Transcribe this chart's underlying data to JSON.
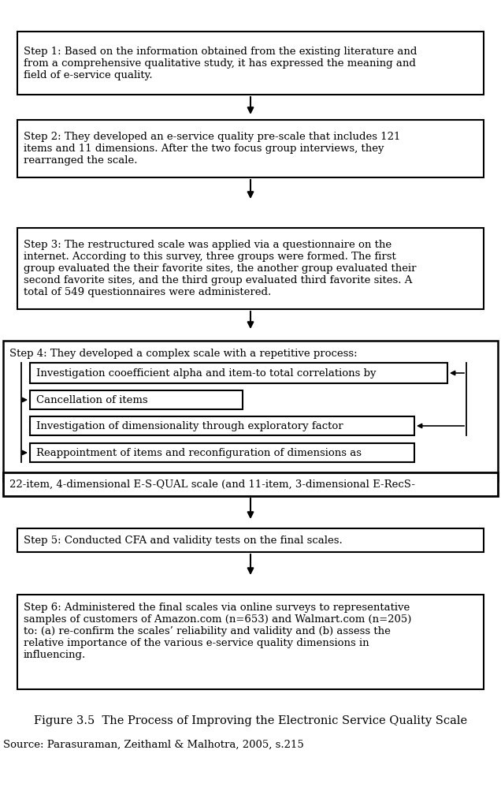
{
  "title": "Figure 3.5  The Process of Improving the Electronic Service Quality Scale",
  "source": "Source: Parasuraman, Zeithaml & Malhotra, 2005, s.215",
  "bg_color": "#ffffff",
  "text_color": "#000000",
  "box_edge_color": "#000000",
  "step1_text": "Step 1: Based on the information obtained from the existing literature and\nfrom a comprehensive qualitative study, it has expressed the meaning and\nfield of e-service quality.",
  "step2_text": "Step 2: They developed an e-service quality pre-scale that includes 121\nitems and 11 dimensions. After the two focus group interviews, they\nrearranged the scale.",
  "step3_text": "Step 3: The restructured scale was applied via a questionnaire on the\ninternet. According to this survey, three groups were formed. The first\ngroup evaluated the their favorite sites, the another group evaluated their\nsecond favorite sites, and the third group evaluated third favorite sites. A\ntotal of 549 questionnaires were administered.",
  "step4_header": "Step 4: They developed a complex scale with a repetitive process:",
  "step4_box1": "Investigation cooefficient alpha and item-to total correlations by",
  "step4_box2": "Cancellation of items",
  "step4_box3": "Investigation of dimensionality through exploratory factor",
  "step4_box4": "Reappointment of items and reconfiguration of dimensions as",
  "step4_result": "22-item, 4-dimensional E-S-QUAL scale (and 11-item, 3-dimensional E-RecS-",
  "step5_text": "Step 5: Conducted CFA and validity tests on the final scales.",
  "step6_text": "Step 6: Administered the final scales via online surveys to representative\nsamples of customers of Amazon.com (n=653) and Walmart.com (n=205)\nto: (a) re-confirm the scales’ reliability and validity and (b) assess the\nrelative importance of the various e-service quality dimensions in\ninfluencing.",
  "fontsize": 9.5,
  "fontfamily": "serif"
}
